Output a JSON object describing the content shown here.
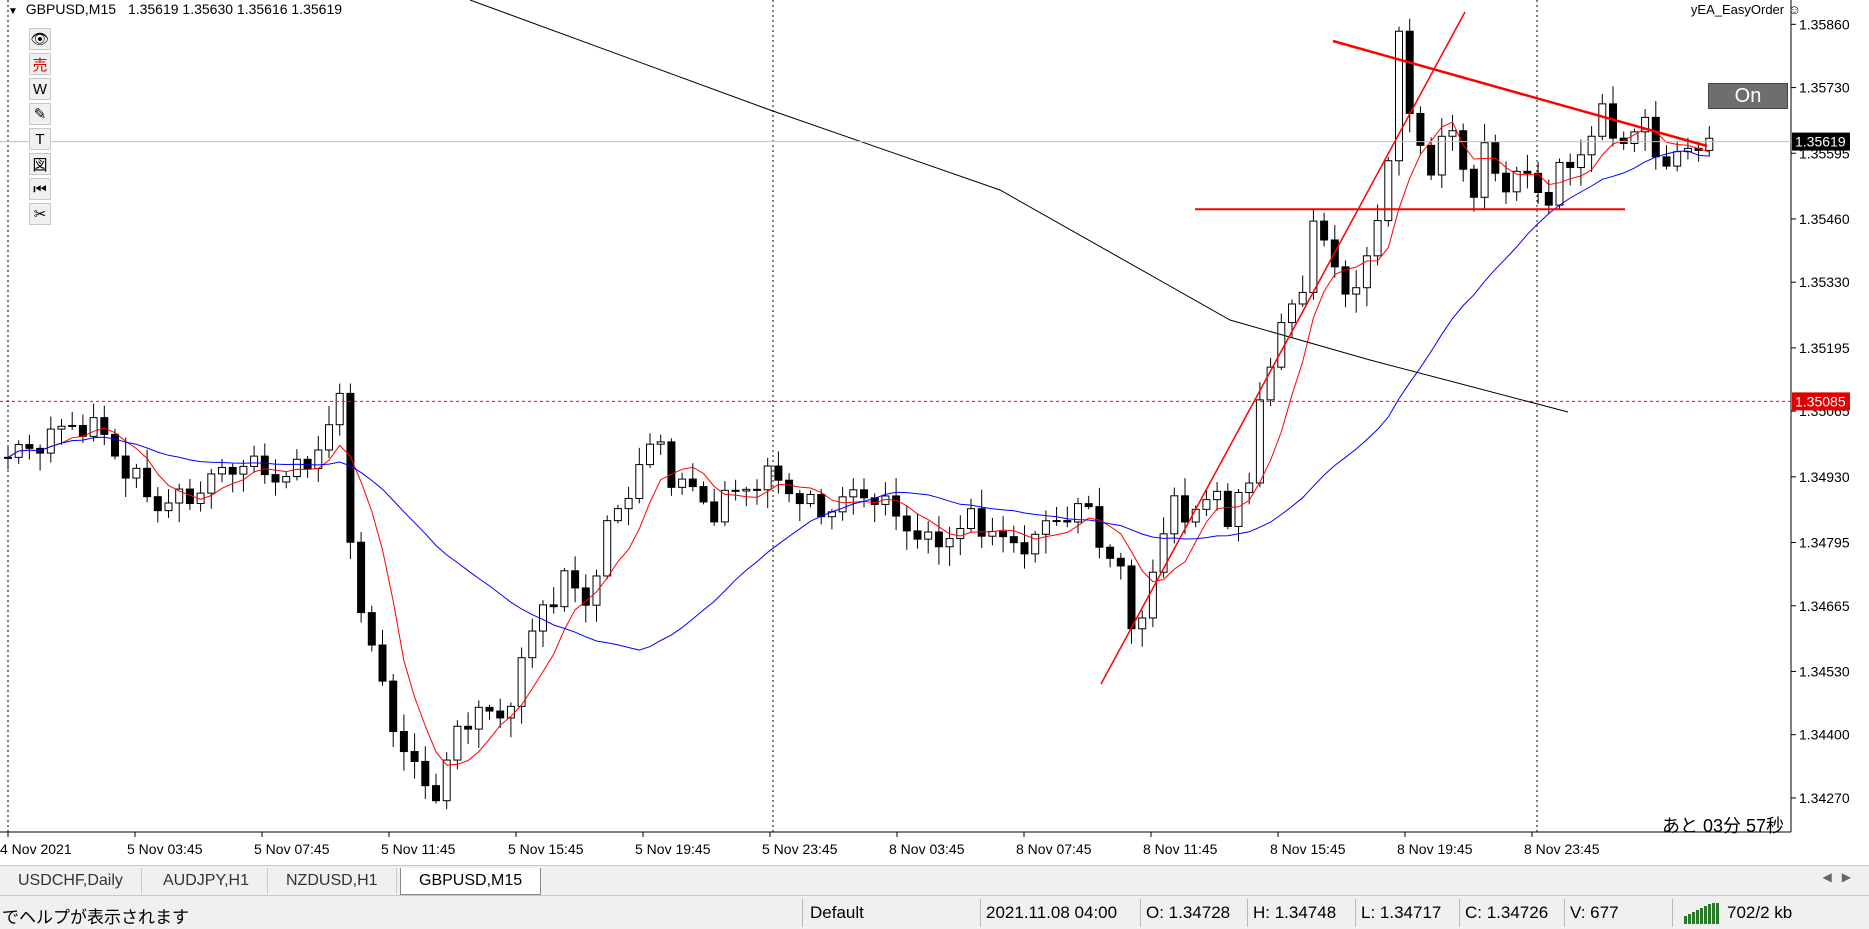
{
  "header": {
    "symbol": "GBPUSD,M15",
    "ohlc": "1.35619 1.35630 1.35616 1.35619"
  },
  "toolbar": {
    "items": [
      {
        "name": "eye-icon",
        "glyph": "👁"
      },
      {
        "name": "sell",
        "glyph": "売"
      },
      {
        "name": "w",
        "glyph": "W"
      },
      {
        "name": "pencil-icon",
        "glyph": "✎"
      },
      {
        "name": "text-tool",
        "glyph": "T"
      },
      {
        "name": "figure-icon",
        "glyph": "図"
      },
      {
        "name": "rewind-icon",
        "glyph": "⏮"
      },
      {
        "name": "scissors-icon",
        "glyph": "✂"
      }
    ]
  },
  "ea": {
    "label": "yEA_EasyOrder ☺",
    "button": "On"
  },
  "countdown": "あと 03分 57秒",
  "price_axis": {
    "ticks": [
      "1.35860",
      "1.35730",
      "1.35595",
      "1.35460",
      "1.35330",
      "1.35195",
      "1.35065",
      "1.34930",
      "1.34795",
      "1.34665",
      "1.34530",
      "1.34400",
      "1.34270"
    ],
    "current_price": "1.35619",
    "alert_price": "1.35085"
  },
  "time_axis": {
    "ticks": [
      "4 Nov 2021",
      "5 Nov 03:45",
      "5 Nov 07:45",
      "5 Nov 11:45",
      "5 Nov 15:45",
      "5 Nov 19:45",
      "5 Nov 23:45",
      "8 Nov 03:45",
      "8 Nov 07:45",
      "8 Nov 11:45",
      "8 Nov 15:45",
      "8 Nov 19:45",
      "8 Nov 23:45"
    ]
  },
  "colors": {
    "fast_ma": "#ff0000",
    "slow_ma": "#0000ff",
    "long_ma": "#000000",
    "trendline": "#ff0000",
    "current_price_line": "#c0c0c0",
    "alert_line": "#ff0000"
  },
  "tabs": [
    {
      "label": "USDCHF,Daily",
      "active": false
    },
    {
      "label": "AUDJPY,H1",
      "active": false
    },
    {
      "label": "NZDUSD,H1",
      "active": false
    },
    {
      "label": "GBPUSD,M15",
      "active": true
    }
  ],
  "status": {
    "help": "でヘルプが表示されます",
    "profile": "Default",
    "datetime": "2021.11.08 04:00",
    "open": "O: 1.34728",
    "high": "H: 1.34748",
    "low": "L: 1.34717",
    "close": "C: 1.34726",
    "volume": "V: 677",
    "traffic": "702/2 kb"
  },
  "chart_data": {
    "type": "candlestick",
    "symbol": "GBPUSD",
    "timeframe": "M15",
    "ylim": [
      1.342,
      1.3591
    ],
    "close_path": [
      [
        0,
        1.3497
      ],
      [
        3,
        1.35
      ],
      [
        6,
        1.3504
      ],
      [
        9,
        1.3502
      ],
      [
        11,
        1.3494
      ],
      [
        13,
        1.349
      ],
      [
        14,
        1.3487
      ],
      [
        17,
        1.3489
      ],
      [
        20,
        1.3494
      ],
      [
        22,
        1.3496
      ],
      [
        25,
        1.3493
      ],
      [
        27,
        1.3494
      ],
      [
        29,
        1.3499
      ],
      [
        31,
        1.3508
      ],
      [
        32,
        1.3482
      ],
      [
        33,
        1.3465
      ],
      [
        35,
        1.345
      ],
      [
        37,
        1.3436
      ],
      [
        39,
        1.343
      ],
      [
        40,
        1.3428
      ],
      [
        42,
        1.344
      ],
      [
        44,
        1.3446
      ],
      [
        46,
        1.3442
      ],
      [
        48,
        1.3455
      ],
      [
        50,
        1.3466
      ],
      [
        52,
        1.3472
      ],
      [
        54,
        1.3467
      ],
      [
        56,
        1.3482
      ],
      [
        58,
        1.349
      ],
      [
        59,
        1.3496
      ],
      [
        61,
        1.35
      ],
      [
        62,
        1.3493
      ],
      [
        64,
        1.349
      ],
      [
        66,
        1.3486
      ],
      [
        68,
        1.349
      ],
      [
        70,
        1.3492
      ],
      [
        72,
        1.3493
      ],
      [
        74,
        1.3488
      ],
      [
        76,
        1.3486
      ],
      [
        78,
        1.3488
      ],
      [
        80,
        1.349
      ],
      [
        82,
        1.3487
      ],
      [
        84,
        1.3483
      ],
      [
        86,
        1.3479
      ],
      [
        88,
        1.3481
      ],
      [
        90,
        1.3484
      ],
      [
        92,
        1.3482
      ],
      [
        94,
        1.3478
      ],
      [
        96,
        1.3481
      ],
      [
        98,
        1.3484
      ],
      [
        100,
        1.3487
      ],
      [
        101,
        1.3485
      ],
      [
        102,
        1.348
      ],
      [
        104,
        1.3474
      ],
      [
        105,
        1.346
      ],
      [
        107,
        1.3473
      ],
      [
        109,
        1.3488
      ],
      [
        111,
        1.3485
      ],
      [
        113,
        1.349
      ],
      [
        114,
        1.3485
      ],
      [
        116,
        1.3491
      ],
      [
        117,
        1.351
      ],
      [
        119,
        1.3523
      ],
      [
        121,
        1.3533
      ],
      [
        122,
        1.3545
      ],
      [
        124,
        1.3536
      ],
      [
        126,
        1.353
      ],
      [
        128,
        1.3546
      ],
      [
        129,
        1.356
      ],
      [
        130,
        1.3582
      ],
      [
        131,
        1.3568
      ],
      [
        133,
        1.3556
      ],
      [
        135,
        1.3565
      ],
      [
        137,
        1.355
      ],
      [
        138,
        1.356
      ],
      [
        140,
        1.3553
      ],
      [
        142,
        1.3555
      ],
      [
        144,
        1.355
      ],
      [
        145,
        1.3555
      ],
      [
        147,
        1.356
      ],
      [
        149,
        1.3567
      ],
      [
        151,
        1.3562
      ],
      [
        153,
        1.3565
      ],
      [
        155,
        1.3557
      ],
      [
        157,
        1.356
      ],
      [
        158,
        1.3562
      ]
    ],
    "indicators": [
      {
        "type": "moving-average",
        "color": "#ff0000"
      },
      {
        "type": "moving-average",
        "color": "#0000ff"
      },
      {
        "type": "moving-average",
        "color": "#000000"
      }
    ],
    "lines": [
      {
        "kind": "horizontal",
        "price": 1.35085,
        "style": "dotted",
        "color": "#ff0000"
      },
      {
        "kind": "horizontal",
        "price": 1.35619,
        "style": "solid",
        "color": "#c0c0c0"
      },
      {
        "kind": "horizontal",
        "price": 1.3548,
        "style": "solid",
        "color": "#ff0000"
      },
      {
        "kind": "trendline",
        "from": [
          1.345
        ],
        "to": [
          1.3585
        ],
        "color": "#ff0000"
      },
      {
        "kind": "trendline",
        "from": [
          1.3578
        ],
        "to": [
          1.356
        ],
        "color": "#ff0000"
      }
    ]
  }
}
